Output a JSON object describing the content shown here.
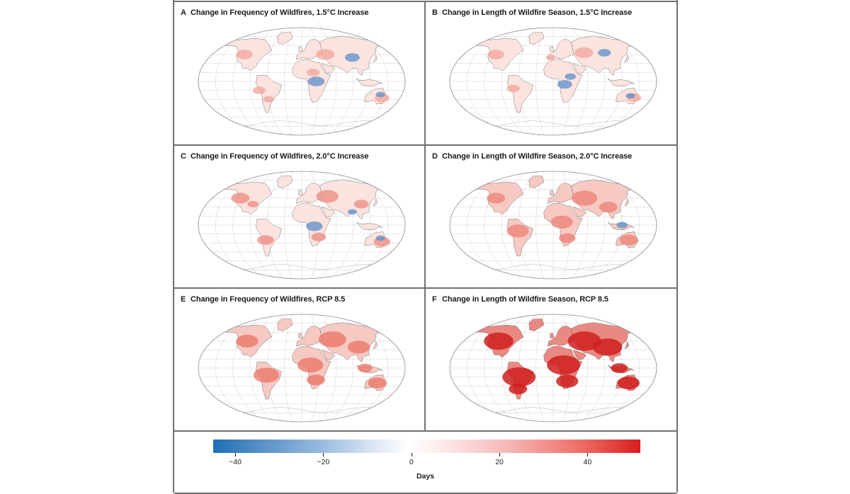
{
  "panels": [
    {
      "letter": "A",
      "title": "Change in Frequency of Wildfires, 1.5°C Increase",
      "variable": "Change in Frequency of Wildfires",
      "scenario": "1.5°C Increase",
      "dominant_color": "#f2a49a"
    },
    {
      "letter": "B",
      "title": "Change in Length of Wildfire Season, 1.5°C Increase",
      "variable": "Change in Length of Wildfire Season",
      "scenario": "1.5°C Increase",
      "dominant_color": "#f2a49a"
    },
    {
      "letter": "C",
      "title": "Change in Frequency of Wildfires, 2.0°C Increase",
      "variable": "Change in Frequency of Wildfires",
      "scenario": "2.0°C Increase",
      "dominant_color": "#ee8a80"
    },
    {
      "letter": "D",
      "title": "Change in Length of Wildfire Season, 2.0°C Increase",
      "variable": "Change in Length of Wildfire Season",
      "scenario": "2.0°C Increase",
      "dominant_color": "#ec7f74"
    },
    {
      "letter": "E",
      "title": "Change in Frequency of Wildfires, RCP 8.5",
      "variable": "Change in Frequency of Wildfires",
      "scenario": "RCP 8.5",
      "dominant_color": "#ea7166"
    },
    {
      "letter": "F",
      "title": "Change in Length of Wildfire Season, RCP 8.5",
      "variable": "Change in Length of Wildfire Season",
      "scenario": "RCP 8.5",
      "dominant_color": "#d42020"
    }
  ],
  "legend": {
    "axis_title": "Days",
    "min": -45,
    "max": 52,
    "ticks": [
      {
        "value": -40,
        "label": "−40"
      },
      {
        "value": -20,
        "label": "−20"
      },
      {
        "value": 0,
        "label": "0"
      },
      {
        "value": 20,
        "label": "20"
      },
      {
        "value": 40,
        "label": "40"
      }
    ],
    "colors": {
      "negative": "#1f6fb5",
      "neutral": "#ffffff",
      "positive": "#d81e1e"
    }
  }
}
